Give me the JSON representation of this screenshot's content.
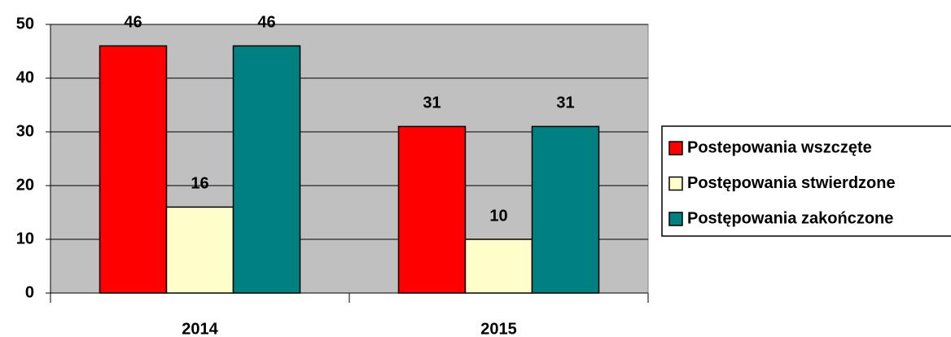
{
  "chart_data": {
    "type": "bar",
    "categories": [
      "2014",
      "2015"
    ],
    "series": [
      {
        "name": "Postepowania wszczęte",
        "color": "#ff0000",
        "values": [
          46,
          31
        ]
      },
      {
        "name": "Postępowania stwierdzone",
        "color": "#ffffcc",
        "values": [
          16,
          10
        ]
      },
      {
        "name": "Postępowania zakończone",
        "color": "#008080",
        "values": [
          46,
          31
        ]
      }
    ],
    "ylim": [
      0,
      50
    ],
    "yticks": [
      0,
      10,
      20,
      30,
      40,
      50
    ],
    "grid": true,
    "legend": "right"
  }
}
